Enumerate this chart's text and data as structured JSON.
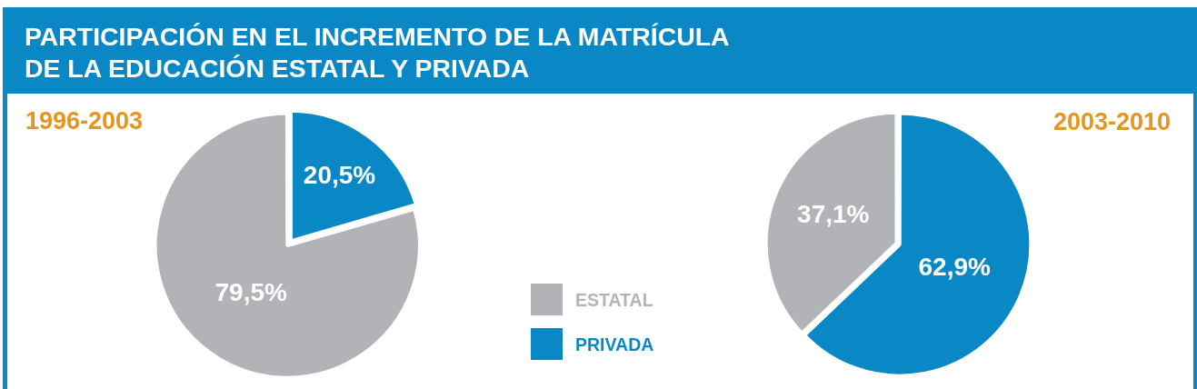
{
  "chart_data": {
    "type": "pie",
    "title": "PARTICIPACIÓN EN EL INCREMENTO DE LA MATRÍCULA DE LA EDUCACIÓN ESTATAL Y PRIVADA",
    "categories": [
      "ESTATAL",
      "PRIVADA"
    ],
    "colors": [
      "#b2b3b6",
      "#0a88c6"
    ],
    "legend": "bottom",
    "series": [
      {
        "name": "1996-2003",
        "values": [
          79.5,
          20.5
        ],
        "value_labels": [
          "79,5%",
          "20,5%"
        ]
      },
      {
        "name": "2003-2010",
        "values": [
          37.1,
          62.9
        ],
        "value_labels": [
          "37,1%",
          "62,9%"
        ]
      }
    ]
  }
}
